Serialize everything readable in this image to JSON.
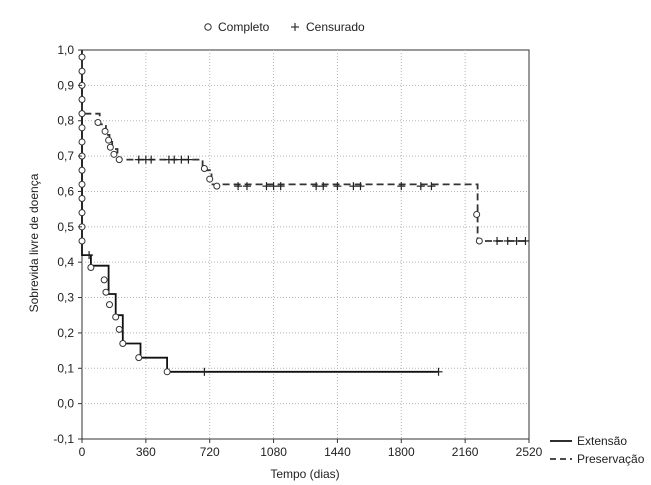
{
  "chart_data": {
    "type": "line",
    "title": "",
    "xlabel": "Tempo (dias)",
    "ylabel": "Sobrevida livre de doença",
    "xlim": [
      0,
      2520
    ],
    "ylim": [
      -0.1,
      1.0
    ],
    "x_ticks": [
      0,
      360,
      720,
      1080,
      1440,
      1800,
      2160,
      2520
    ],
    "x_tick_labels": [
      "0",
      "360",
      "720",
      "1080",
      "1440",
      "1800",
      "2160",
      "2520"
    ],
    "y_ticks": [
      -0.1,
      0.0,
      0.1,
      0.2,
      0.3,
      0.4,
      0.5,
      0.6,
      0.7,
      0.8,
      0.9,
      1.0
    ],
    "y_tick_labels": [
      "-0,1",
      "0,0",
      "0,1",
      "0,2",
      "0,3",
      "0,4",
      "0,5",
      "0,6",
      "0,7",
      "0,8",
      "0,9",
      "1,0"
    ],
    "grid": true,
    "marker_legend": {
      "placement": "top-center",
      "items": [
        {
          "label": "Completo",
          "marker": "circle"
        },
        {
          "label": "Censurado",
          "marker": "plus"
        }
      ]
    },
    "series_legend_placement": "bottom-right",
    "series": [
      {
        "name": "Extensão",
        "line_style": "solid",
        "color": "#111111",
        "steps": [
          [
            0,
            1.0
          ],
          [
            0,
            0.42
          ],
          [
            50,
            0.42
          ],
          [
            50,
            0.39
          ],
          [
            150,
            0.39
          ],
          [
            150,
            0.31
          ],
          [
            190,
            0.31
          ],
          [
            190,
            0.25
          ],
          [
            230,
            0.25
          ],
          [
            230,
            0.17
          ],
          [
            330,
            0.17
          ],
          [
            330,
            0.13
          ],
          [
            480,
            0.13
          ],
          [
            480,
            0.09
          ],
          [
            2010,
            0.09
          ]
        ],
        "complete_events": [
          [
            0,
            0.98
          ],
          [
            0,
            0.94
          ],
          [
            0,
            0.9
          ],
          [
            0,
            0.86
          ],
          [
            0,
            0.82
          ],
          [
            0,
            0.78
          ],
          [
            0,
            0.74
          ],
          [
            0,
            0.7
          ],
          [
            0,
            0.66
          ],
          [
            0,
            0.62
          ],
          [
            0,
            0.58
          ],
          [
            0,
            0.54
          ],
          [
            0,
            0.5
          ],
          [
            0,
            0.46
          ],
          [
            50,
            0.385
          ],
          [
            125,
            0.35
          ],
          [
            135,
            0.315
          ],
          [
            155,
            0.28
          ],
          [
            190,
            0.245
          ],
          [
            210,
            0.21
          ],
          [
            230,
            0.17
          ],
          [
            320,
            0.13
          ],
          [
            480,
            0.09
          ]
        ],
        "censored_events": [
          [
            40,
            0.42
          ],
          [
            690,
            0.09
          ],
          [
            2010,
            0.09
          ]
        ]
      },
      {
        "name": "Preservação",
        "line_style": "dashed",
        "color": "#333333",
        "steps": [
          [
            0,
            1.0
          ],
          [
            0,
            0.82
          ],
          [
            100,
            0.82
          ],
          [
            100,
            0.79
          ],
          [
            135,
            0.79
          ],
          [
            135,
            0.76
          ],
          [
            155,
            0.76
          ],
          [
            155,
            0.74
          ],
          [
            170,
            0.74
          ],
          [
            170,
            0.72
          ],
          [
            200,
            0.72
          ],
          [
            200,
            0.69
          ],
          [
            680,
            0.69
          ],
          [
            680,
            0.66
          ],
          [
            730,
            0.66
          ],
          [
            730,
            0.62
          ],
          [
            2230,
            0.62
          ],
          [
            2230,
            0.46
          ],
          [
            2520,
            0.46
          ]
        ],
        "complete_events": [
          [
            90,
            0.795
          ],
          [
            130,
            0.77
          ],
          [
            150,
            0.745
          ],
          [
            160,
            0.725
          ],
          [
            180,
            0.705
          ],
          [
            210,
            0.69
          ],
          [
            690,
            0.665
          ],
          [
            720,
            0.635
          ],
          [
            760,
            0.615
          ],
          [
            2225,
            0.535
          ],
          [
            2240,
            0.46
          ]
        ],
        "censored_events": [
          [
            320,
            0.69
          ],
          [
            360,
            0.69
          ],
          [
            390,
            0.69
          ],
          [
            490,
            0.69
          ],
          [
            520,
            0.69
          ],
          [
            560,
            0.69
          ],
          [
            600,
            0.69
          ],
          [
            880,
            0.615
          ],
          [
            930,
            0.615
          ],
          [
            1040,
            0.615
          ],
          [
            1080,
            0.615
          ],
          [
            1120,
            0.615
          ],
          [
            1320,
            0.615
          ],
          [
            1360,
            0.615
          ],
          [
            1440,
            0.615
          ],
          [
            1530,
            0.615
          ],
          [
            1570,
            0.615
          ],
          [
            1800,
            0.615
          ],
          [
            1910,
            0.615
          ],
          [
            1970,
            0.615
          ],
          [
            2340,
            0.46
          ],
          [
            2400,
            0.46
          ],
          [
            2450,
            0.46
          ],
          [
            2500,
            0.46
          ]
        ]
      }
    ]
  }
}
